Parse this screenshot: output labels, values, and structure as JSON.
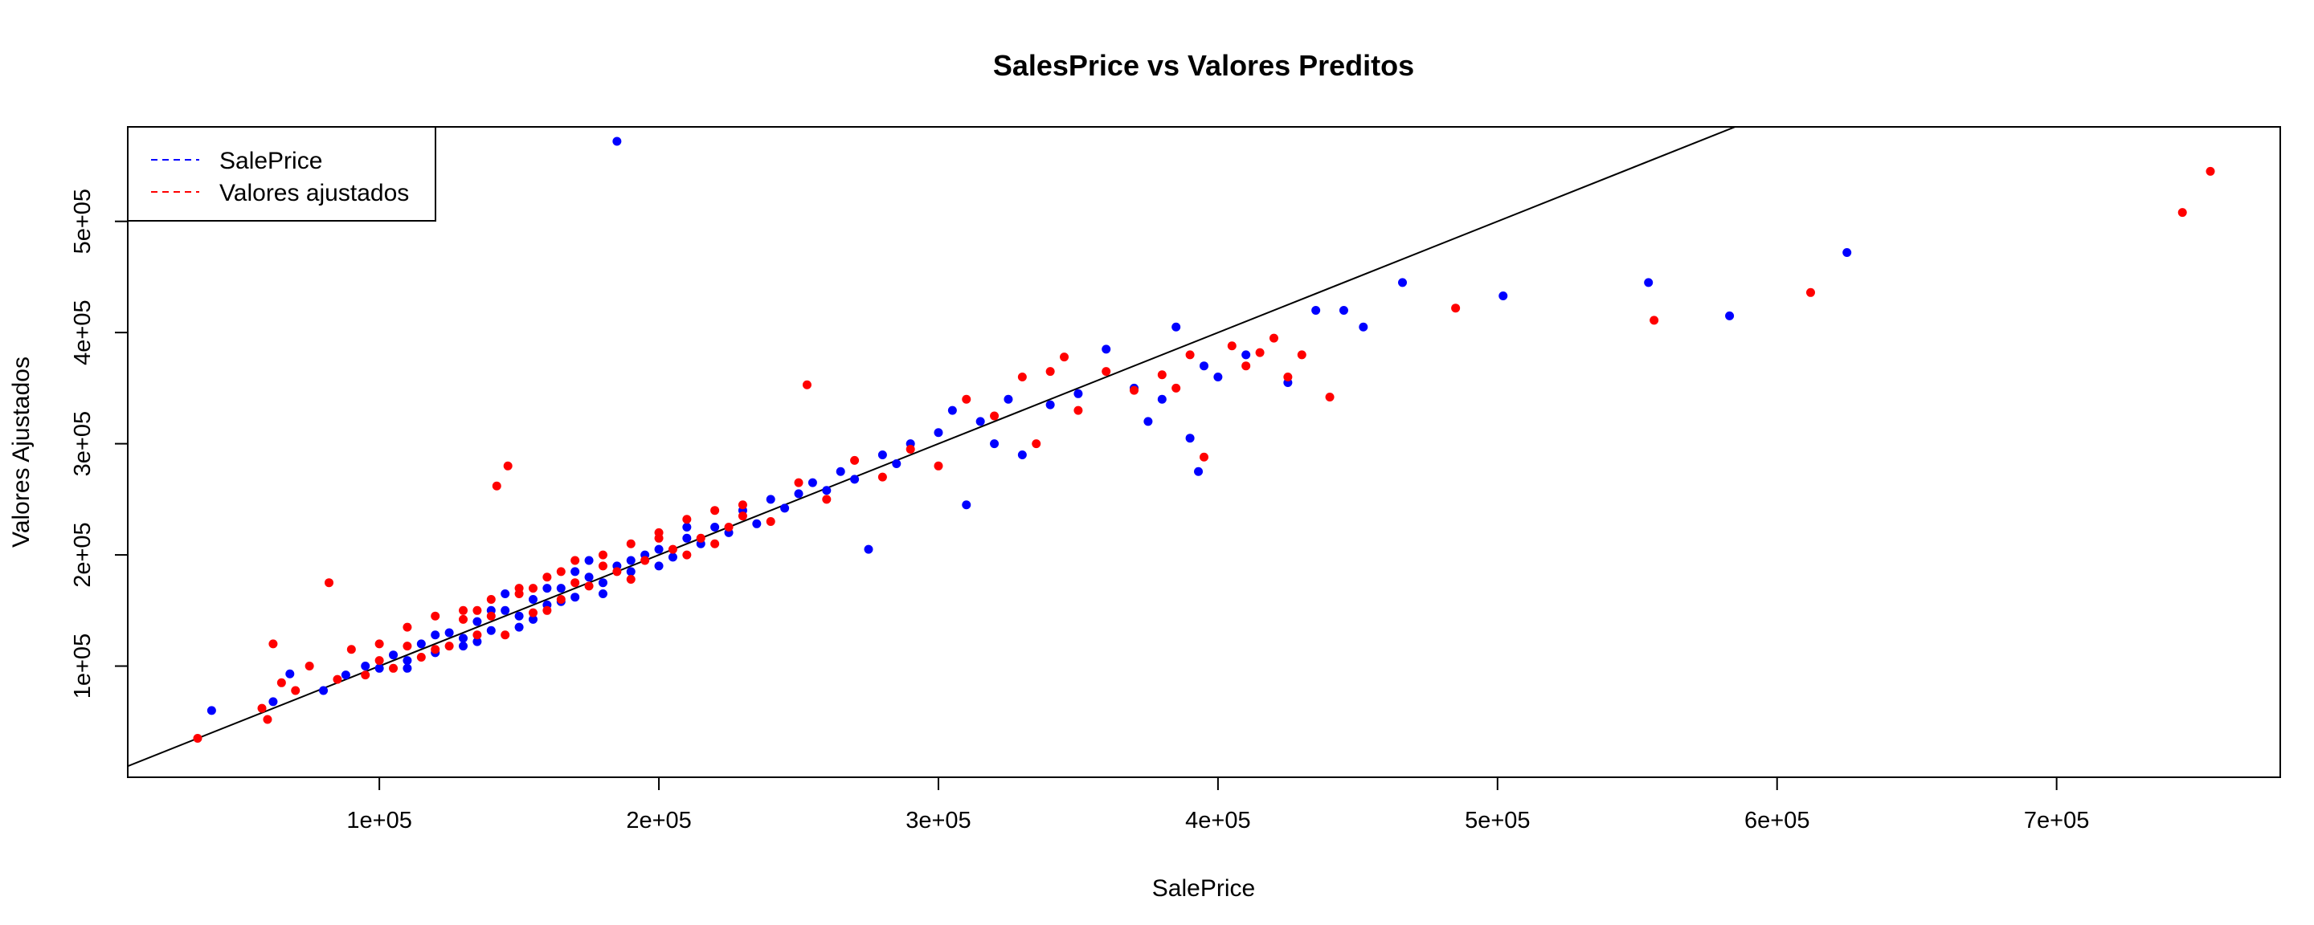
{
  "chart_data": {
    "type": "scatter",
    "title": "SalesPrice vs Valores Preditos",
    "xlabel": "SalePrice",
    "ylabel": "Valores Ajustados",
    "xlim": [
      10000,
      780000
    ],
    "ylim": [
      0,
      585000
    ],
    "x_ticks": [
      100000,
      200000,
      300000,
      400000,
      500000,
      600000,
      700000
    ],
    "x_tick_labels": [
      "1e+05",
      "2e+05",
      "3e+05",
      "4e+05",
      "5e+05",
      "6e+05",
      "7e+05"
    ],
    "y_ticks": [
      100000,
      200000,
      300000,
      400000,
      500000
    ],
    "y_tick_labels": [
      "1e+05",
      "2e+05",
      "3e+05",
      "4e+05",
      "5e+05"
    ],
    "grid": false,
    "legend_position": "top-left",
    "reference_line": {
      "slope": 1,
      "intercept": 0,
      "color": "#000000"
    },
    "series": [
      {
        "name": "SalePrice",
        "color": "#0000ff",
        "points": [
          [
            40000,
            60000
          ],
          [
            62000,
            68000
          ],
          [
            68000,
            93000
          ],
          [
            80000,
            78000
          ],
          [
            88000,
            92000
          ],
          [
            95000,
            100000
          ],
          [
            100000,
            98000
          ],
          [
            105000,
            110000
          ],
          [
            110000,
            105000
          ],
          [
            115000,
            120000
          ],
          [
            120000,
            112000
          ],
          [
            125000,
            130000
          ],
          [
            130000,
            125000
          ],
          [
            135000,
            140000
          ],
          [
            140000,
            132000
          ],
          [
            145000,
            150000
          ],
          [
            150000,
            145000
          ],
          [
            155000,
            160000
          ],
          [
            160000,
            155000
          ],
          [
            165000,
            170000
          ],
          [
            170000,
            162000
          ],
          [
            175000,
            180000
          ],
          [
            180000,
            175000
          ],
          [
            185000,
            190000
          ],
          [
            190000,
            185000
          ],
          [
            195000,
            200000
          ],
          [
            200000,
            205000
          ],
          [
            205000,
            198000
          ],
          [
            210000,
            215000
          ],
          [
            215000,
            210000
          ],
          [
            220000,
            225000
          ],
          [
            225000,
            220000
          ],
          [
            230000,
            240000
          ],
          [
            235000,
            228000
          ],
          [
            240000,
            250000
          ],
          [
            245000,
            242000
          ],
          [
            250000,
            255000
          ],
          [
            255000,
            265000
          ],
          [
            260000,
            258000
          ],
          [
            265000,
            275000
          ],
          [
            270000,
            268000
          ],
          [
            275000,
            205000
          ],
          [
            280000,
            290000
          ],
          [
            285000,
            282000
          ],
          [
            290000,
            300000
          ],
          [
            300000,
            310000
          ],
          [
            305000,
            330000
          ],
          [
            310000,
            245000
          ],
          [
            315000,
            320000
          ],
          [
            320000,
            300000
          ],
          [
            325000,
            340000
          ],
          [
            330000,
            290000
          ],
          [
            340000,
            335000
          ],
          [
            350000,
            345000
          ],
          [
            360000,
            385000
          ],
          [
            370000,
            350000
          ],
          [
            375000,
            320000
          ],
          [
            380000,
            340000
          ],
          [
            385000,
            405000
          ],
          [
            390000,
            305000
          ],
          [
            393000,
            275000
          ],
          [
            395000,
            370000
          ],
          [
            400000,
            360000
          ],
          [
            410000,
            380000
          ],
          [
            425000,
            355000
          ],
          [
            435000,
            420000
          ],
          [
            445000,
            420000
          ],
          [
            452000,
            405000
          ],
          [
            466000,
            445000
          ],
          [
            502000,
            433000
          ],
          [
            554000,
            445000
          ],
          [
            583000,
            415000
          ],
          [
            625000,
            472000
          ],
          [
            185000,
            572000
          ],
          [
            160000,
            170000
          ],
          [
            150000,
            135000
          ],
          [
            170000,
            185000
          ],
          [
            190000,
            195000
          ],
          [
            140000,
            150000
          ],
          [
            130000,
            118000
          ],
          [
            120000,
            128000
          ],
          [
            110000,
            98000
          ],
          [
            200000,
            190000
          ],
          [
            210000,
            225000
          ],
          [
            180000,
            165000
          ],
          [
            175000,
            195000
          ],
          [
            165000,
            158000
          ],
          [
            155000,
            142000
          ],
          [
            145000,
            165000
          ],
          [
            135000,
            122000
          ]
        ]
      },
      {
        "name": "Valores ajustados",
        "color": "#ff0000",
        "points": [
          [
            35000,
            35000
          ],
          [
            58000,
            62000
          ],
          [
            60000,
            52000
          ],
          [
            62000,
            120000
          ],
          [
            65000,
            85000
          ],
          [
            70000,
            78000
          ],
          [
            75000,
            100000
          ],
          [
            82000,
            175000
          ],
          [
            85000,
            88000
          ],
          [
            90000,
            115000
          ],
          [
            95000,
            92000
          ],
          [
            100000,
            120000
          ],
          [
            105000,
            98000
          ],
          [
            110000,
            135000
          ],
          [
            115000,
            108000
          ],
          [
            120000,
            145000
          ],
          [
            125000,
            118000
          ],
          [
            130000,
            150000
          ],
          [
            135000,
            128000
          ],
          [
            140000,
            160000
          ],
          [
            142000,
            262000
          ],
          [
            146000,
            280000
          ],
          [
            150000,
            165000
          ],
          [
            155000,
            148000
          ],
          [
            160000,
            180000
          ],
          [
            165000,
            160000
          ],
          [
            170000,
            195000
          ],
          [
            175000,
            172000
          ],
          [
            180000,
            200000
          ],
          [
            185000,
            185000
          ],
          [
            190000,
            210000
          ],
          [
            195000,
            195000
          ],
          [
            200000,
            220000
          ],
          [
            205000,
            205000
          ],
          [
            210000,
            232000
          ],
          [
            215000,
            215000
          ],
          [
            220000,
            240000
          ],
          [
            225000,
            225000
          ],
          [
            230000,
            245000
          ],
          [
            240000,
            230000
          ],
          [
            250000,
            265000
          ],
          [
            253000,
            353000
          ],
          [
            260000,
            250000
          ],
          [
            270000,
            285000
          ],
          [
            280000,
            270000
          ],
          [
            290000,
            295000
          ],
          [
            300000,
            280000
          ],
          [
            310000,
            340000
          ],
          [
            320000,
            325000
          ],
          [
            330000,
            360000
          ],
          [
            335000,
            300000
          ],
          [
            340000,
            365000
          ],
          [
            345000,
            378000
          ],
          [
            350000,
            330000
          ],
          [
            360000,
            365000
          ],
          [
            370000,
            348000
          ],
          [
            380000,
            362000
          ],
          [
            385000,
            350000
          ],
          [
            390000,
            380000
          ],
          [
            395000,
            288000
          ],
          [
            405000,
            388000
          ],
          [
            410000,
            370000
          ],
          [
            415000,
            382000
          ],
          [
            420000,
            395000
          ],
          [
            425000,
            360000
          ],
          [
            430000,
            380000
          ],
          [
            440000,
            342000
          ],
          [
            485000,
            422000
          ],
          [
            556000,
            411000
          ],
          [
            612000,
            436000
          ],
          [
            745000,
            508000
          ],
          [
            755000,
            545000
          ],
          [
            150000,
            170000
          ],
          [
            160000,
            150000
          ],
          [
            170000,
            175000
          ],
          [
            180000,
            190000
          ],
          [
            190000,
            178000
          ],
          [
            200000,
            215000
          ],
          [
            140000,
            145000
          ],
          [
            130000,
            142000
          ],
          [
            120000,
            115000
          ],
          [
            110000,
            118000
          ],
          [
            100000,
            105000
          ],
          [
            210000,
            200000
          ],
          [
            220000,
            210000
          ],
          [
            230000,
            235000
          ],
          [
            165000,
            185000
          ],
          [
            155000,
            170000
          ],
          [
            145000,
            128000
          ],
          [
            135000,
            150000
          ]
        ]
      }
    ]
  }
}
